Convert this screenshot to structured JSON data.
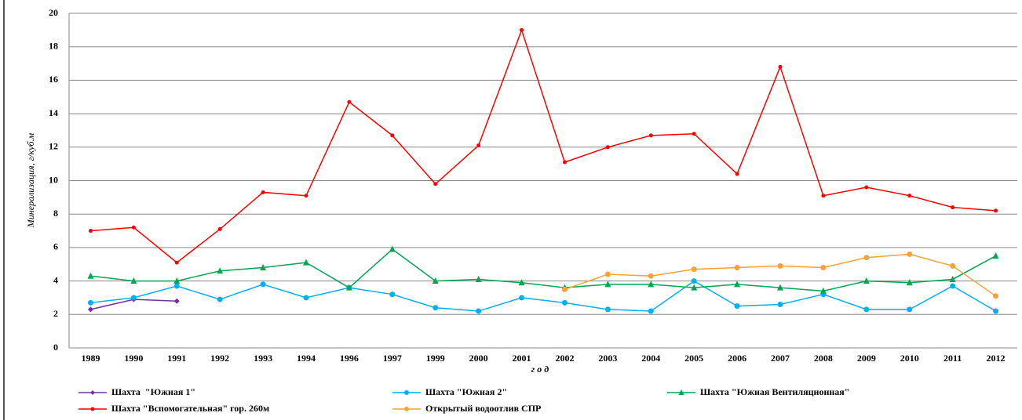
{
  "chart_data": {
    "type": "line",
    "y_label": "Минерализация, г/куб.м",
    "x_label": "г о д",
    "categories": [
      "1989",
      "1990",
      "1991",
      "1992",
      "1993",
      "1994",
      "1996",
      "1997",
      "1999",
      "2000",
      "2001",
      "2002",
      "2003",
      "2004",
      "2005",
      "2006",
      "2007",
      "2008",
      "2009",
      "2010",
      "2011",
      "2012"
    ],
    "ylim": [
      0,
      20
    ],
    "yticks": [
      0,
      2,
      4,
      6,
      8,
      10,
      12,
      14,
      16,
      18,
      20
    ],
    "grid": true,
    "series": [
      {
        "name": "Шахта  \"Южная 1\"",
        "color": "#7030a0",
        "marker": "diamond",
        "values": [
          2.3,
          2.9,
          2.8,
          null,
          null,
          null,
          null,
          null,
          null,
          null,
          null,
          null,
          null,
          null,
          null,
          null,
          null,
          null,
          null,
          null,
          null,
          null
        ]
      },
      {
        "name": "Шахта \"Южная 2\"",
        "color": "#00b0f0",
        "marker": "circle",
        "values": [
          2.7,
          3.0,
          3.7,
          2.9,
          3.8,
          3.0,
          3.6,
          3.2,
          2.4,
          2.2,
          3.0,
          2.7,
          2.3,
          2.2,
          4.0,
          2.5,
          2.6,
          3.2,
          2.3,
          2.3,
          3.7,
          2.2
        ]
      },
      {
        "name": "Шахта \"Южная Вентиляционная\"",
        "color": "#00a651",
        "marker": "triangle",
        "values": [
          4.3,
          4.0,
          4.0,
          4.6,
          4.8,
          5.1,
          3.6,
          5.9,
          4.0,
          4.1,
          3.9,
          3.6,
          3.8,
          3.8,
          3.6,
          3.8,
          3.6,
          3.4,
          4.0,
          3.9,
          4.1,
          5.5
        ]
      },
      {
        "name": "Шахта \"Вспомогательная\" гор. 260м",
        "color": "#ff0000",
        "marker": "dot",
        "values": [
          7.0,
          7.2,
          5.1,
          7.1,
          9.3,
          9.1,
          14.7,
          12.7,
          9.8,
          12.1,
          19.0,
          11.1,
          12.0,
          12.7,
          12.8,
          10.4,
          16.8,
          9.1,
          9.6,
          9.1,
          8.4,
          8.2
        ]
      },
      {
        "name": "Открытый водоотлив СПР",
        "color": "#f7a234",
        "marker": "circle",
        "values": [
          null,
          null,
          null,
          null,
          null,
          null,
          null,
          null,
          null,
          null,
          null,
          3.5,
          4.4,
          4.3,
          4.7,
          4.8,
          4.9,
          4.8,
          5.4,
          5.6,
          4.9,
          3.1
        ]
      }
    ]
  }
}
